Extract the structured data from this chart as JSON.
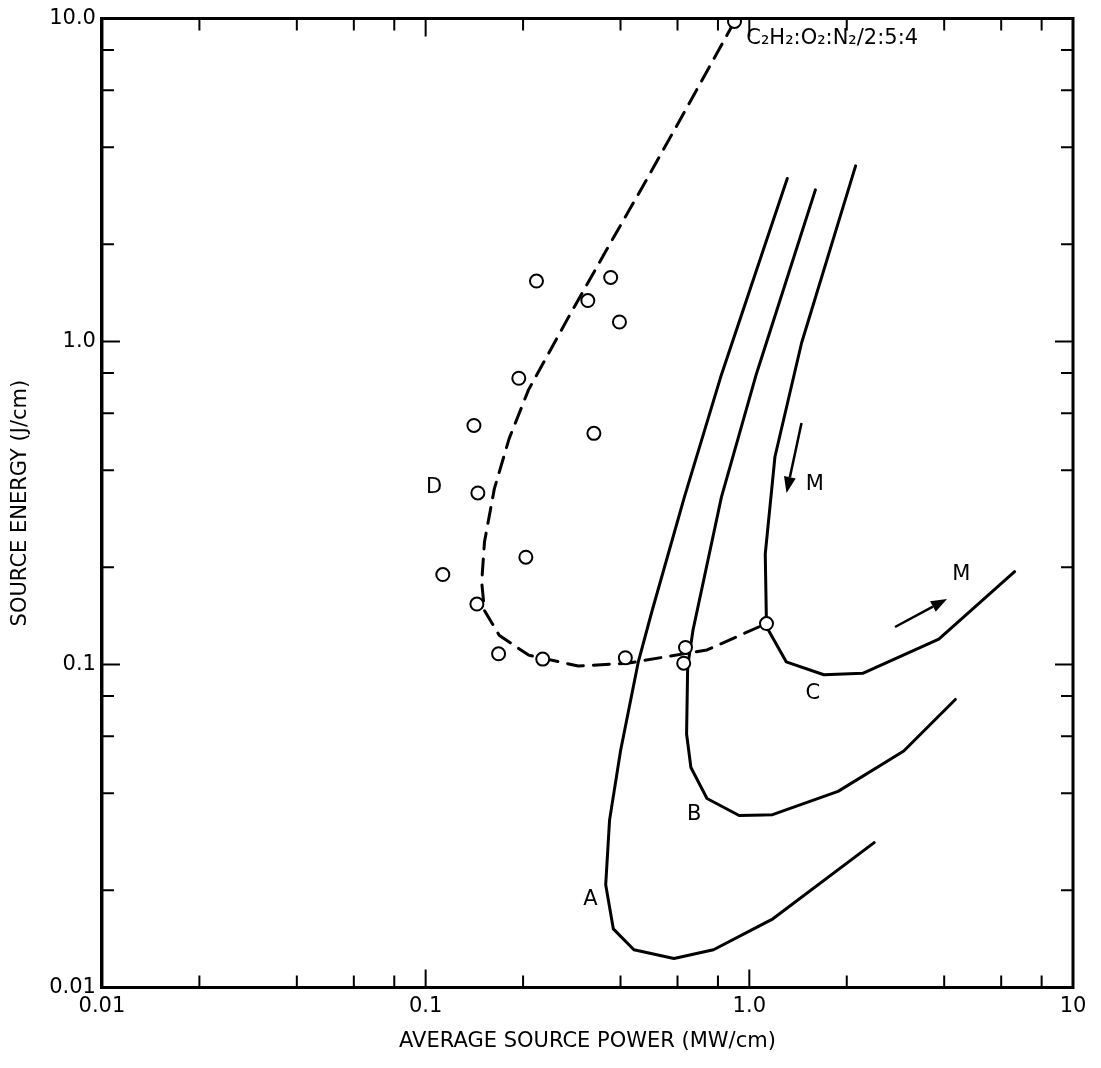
{
  "chart_data": {
    "type": "line",
    "xlabel": "AVERAGE SOURCE POWER (MW/cm)",
    "ylabel": "SOURCE ENERGY (J/cm)",
    "log": "xy",
    "xlim": [
      0.01,
      10
    ],
    "ylim": [
      0.01,
      10
    ],
    "xticks": [
      0.01,
      {
        "value": 0.02,
        "label": null
      },
      {
        "value": 0.04,
        "label": null
      },
      {
        "value": 0.06,
        "label": null
      },
      {
        "value": 0.08,
        "label": null
      },
      0.1,
      {
        "value": 0.2,
        "label": null
      },
      {
        "value": 0.4,
        "label": null
      },
      {
        "value": 0.6,
        "label": null
      },
      {
        "value": 0.8,
        "label": null
      },
      {
        "value": 1,
        "label": "1.0"
      },
      {
        "value": 2,
        "label": null
      },
      {
        "value": 4,
        "label": null
      },
      {
        "value": 6,
        "label": null
      },
      {
        "value": 8,
        "label": null
      },
      10
    ],
    "yticks": [
      0.01,
      {
        "value": 0.02,
        "label": null
      },
      {
        "value": 0.04,
        "label": null
      },
      {
        "value": 0.06,
        "label": null
      },
      {
        "value": 0.08,
        "label": null
      },
      0.1,
      {
        "value": 0.2,
        "label": null
      },
      {
        "value": 0.4,
        "label": null
      },
      {
        "value": 0.6,
        "label": null
      },
      {
        "value": 0.8,
        "label": null
      },
      {
        "value": 1,
        "label": "1.0"
      },
      {
        "value": 2,
        "label": null
      },
      {
        "value": 4,
        "label": null
      },
      {
        "value": 6,
        "label": null
      },
      {
        "value": 8,
        "label": null
      },
      {
        "value": 10,
        "label": "10.0"
      }
    ],
    "series": [
      {
        "color": "#000000",
        "line_style": "solid",
        "marker": "none",
        "x": [
          1.31,
          0.82,
          0.63,
          0.5,
          0.454,
          0.4,
          0.37,
          0.36,
          0.38,
          0.44,
          0.585,
          0.775,
          1.18,
          2.43
        ],
        "values": [
          3.2,
          0.79,
          0.33,
          0.146,
          0.102,
          0.054,
          0.033,
          0.0208,
          0.0152,
          0.0131,
          0.0123,
          0.0131,
          0.0163,
          0.0281
        ]
      },
      {
        "color": "#000000",
        "line_style": "solid",
        "marker": "none",
        "x": [
          1.6,
          1.05,
          0.82,
          0.67,
          0.645,
          0.64,
          0.66,
          0.74,
          0.93,
          1.18,
          1.88,
          3.0,
          4.33
        ],
        "values": [
          2.95,
          0.79,
          0.33,
          0.128,
          0.099,
          0.061,
          0.048,
          0.0385,
          0.0341,
          0.0343,
          0.0405,
          0.054,
          0.078
        ]
      },
      {
        "color": "#000000",
        "line_style": "solid",
        "marker": "none",
        "x": [
          2.13,
          1.45,
          1.2,
          1.12,
          1.13,
          1.3,
          1.7,
          2.24,
          3.85,
          6.6
        ],
        "values": [
          3.5,
          0.99,
          0.44,
          0.22,
          0.131,
          0.102,
          0.093,
          0.094,
          0.12,
          0.194
        ]
      },
      {
        "color": "#000000",
        "line_style": "dashed",
        "marker": "none",
        "x": [
          0.9,
          0.641,
          0.484,
          0.365,
          0.275,
          0.208,
          0.181,
          0.163,
          0.152,
          0.149,
          0.152,
          0.169,
          0.208,
          0.296,
          0.42,
          0.74,
          1.13
        ],
        "values": [
          9.8,
          5.3,
          3.2,
          1.95,
          1.18,
          0.71,
          0.5,
          0.35,
          0.24,
          0.18,
          0.147,
          0.123,
          0.107,
          0.099,
          0.101,
          0.111,
          0.134
        ]
      },
      {
        "type": "scatter",
        "color": "#000000",
        "marker": "circle",
        "x": [
          0.9,
          0.22,
          0.373,
          0.317,
          0.397,
          0.194,
          0.141,
          0.331,
          0.145,
          0.113,
          0.204,
          0.144,
          0.168,
          0.23,
          0.414,
          0.635,
          0.627,
          1.13
        ],
        "values": [
          9.8,
          1.54,
          1.58,
          1.34,
          1.15,
          0.77,
          0.55,
          0.52,
          0.34,
          0.19,
          0.215,
          0.154,
          0.108,
          0.104,
          0.105,
          0.113,
          0.101,
          0.134
        ]
      }
    ],
    "annotations": [
      "C₂H₂:O₂:N₂/2:5:4",
      "A",
      "B",
      "C",
      "D",
      "M",
      "M"
    ]
  }
}
